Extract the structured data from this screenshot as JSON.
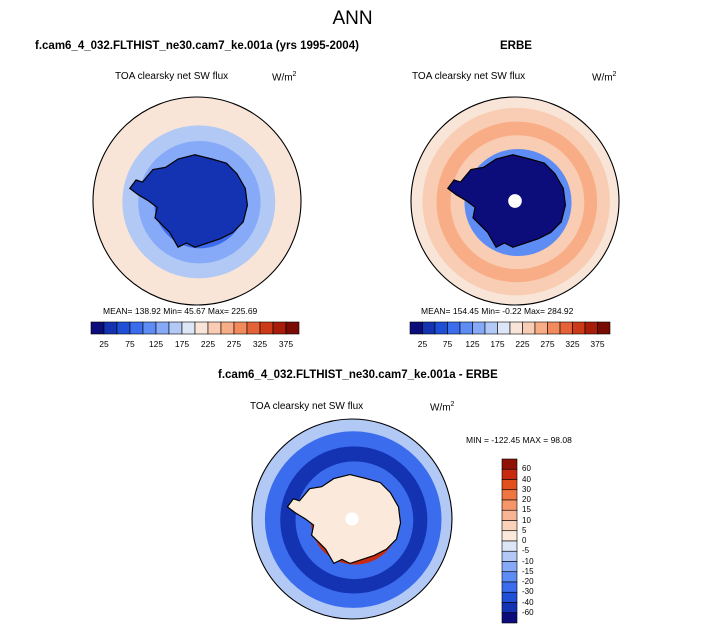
{
  "figure": {
    "title": "ANN",
    "variable_label": "TOA clearsky net SW flux",
    "units_base": "W/m",
    "units_exp": "2"
  },
  "panels": {
    "model": {
      "title": "f.cam6_4_032.FLTHIST_ne30.cam7_ke.001a (yrs 1995-2004)",
      "stats": "MEAN= 138.92  Min=  45.67  Max= 225.69",
      "ring_values": [
        45.7,
        60,
        90,
        130,
        170,
        205,
        222
      ]
    },
    "obs": {
      "title": "ERBE",
      "stats": "MEAN= 154.45  Min=  -0.22  Max= 284.92",
      "ring_values": [
        -0.2,
        55,
        70,
        120,
        240,
        260,
        230,
        210
      ]
    },
    "diff": {
      "title": "f.cam6_4_032.FLTHIST_ne30.cam7_ke.001a - ERBE",
      "stats": "MIN = -122.45 MAX =  98.08",
      "ring_values": [
        0,
        20,
        40,
        -30,
        -50,
        -30,
        -10
      ]
    }
  },
  "colorbar_abs": {
    "labels": [
      "25",
      "75",
      "125",
      "175",
      "225",
      "275",
      "325",
      "375"
    ],
    "colors": [
      "#0c0c7a",
      "#1433b3",
      "#1f4fd6",
      "#3b6cee",
      "#5e8cf5",
      "#86aaf7",
      "#b2c9f6",
      "#dde6f7",
      "#f8e5d8",
      "#f9cdb3",
      "#f8ad86",
      "#f38a5c",
      "#e56237",
      "#cc3a18",
      "#a81d0a",
      "#7a0b04"
    ]
  },
  "colorbar_diff": {
    "labels": [
      "60",
      "40",
      "30",
      "20",
      "15",
      "10",
      "5",
      "0",
      "-5",
      "-10",
      "-15",
      "-20",
      "-30",
      "-40",
      "-60"
    ],
    "colors": [
      "#8e1305",
      "#c82a10",
      "#e2501d",
      "#ef7640",
      "#f5966a",
      "#f8b595",
      "#fad2ba",
      "#fbeadc",
      "#dde6f7",
      "#b2c9f6",
      "#86aaf7",
      "#5e8cf5",
      "#3b6cee",
      "#1f4fd6",
      "#1433b3",
      "#0c0c7a"
    ]
  }
}
